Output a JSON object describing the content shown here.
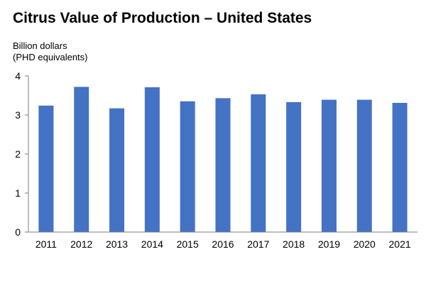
{
  "chart_data": {
    "type": "bar",
    "title": "Citrus Value of Production – United States",
    "ylabel_lines": [
      "Billion dollars",
      "(PHD equivalents)"
    ],
    "xlabel": "",
    "categories": [
      "2011",
      "2012",
      "2013",
      "2014",
      "2015",
      "2016",
      "2017",
      "2018",
      "2019",
      "2020",
      "2021"
    ],
    "values": [
      3.24,
      3.72,
      3.17,
      3.71,
      3.35,
      3.43,
      3.53,
      3.33,
      3.39,
      3.39,
      3.31
    ],
    "ylim": [
      0,
      4
    ],
    "yticks": [
      "0",
      "1",
      "2",
      "3",
      "4"
    ],
    "grid": false,
    "legend": "none",
    "bar_color": "#4472C4",
    "axis_color": "#7F7F7F"
  }
}
